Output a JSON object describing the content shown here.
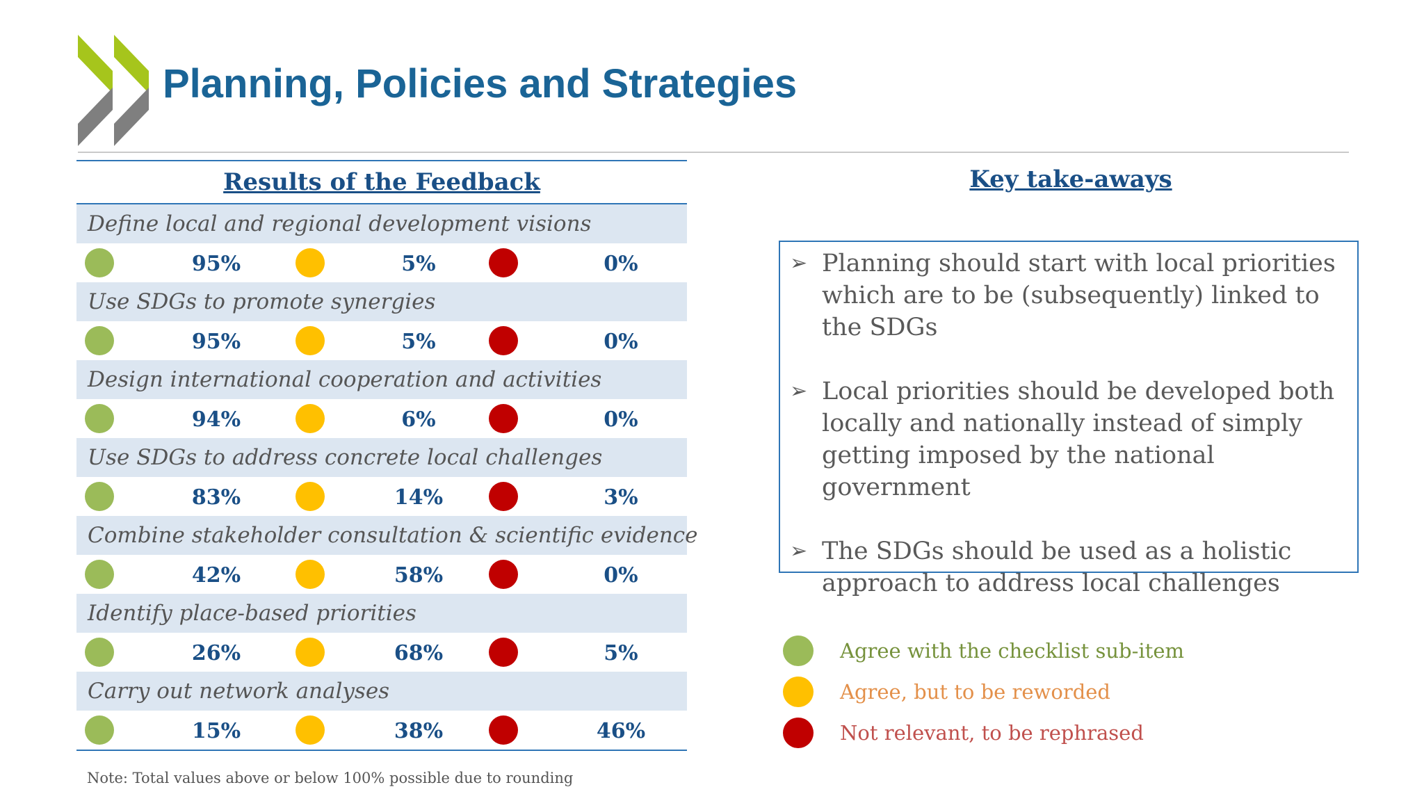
{
  "title": "Planning, Policies and Strategies",
  "colors": {
    "title": "#1a6496",
    "agree": "#9bbb59",
    "reword": "#ffc000",
    "not_relevant": "#c00000",
    "accent": "#2e75b6"
  },
  "results": {
    "heading": "Results of the Feedback",
    "items": [
      {
        "label": "Define local and regional development visions",
        "agree": "95%",
        "reword": "5%",
        "not_relevant": "0%"
      },
      {
        "label": "Use SDGs to promote synergies",
        "agree": "95%",
        "reword": "5%",
        "not_relevant": "0%"
      },
      {
        "label": "Design international cooperation and activities",
        "agree": "94%",
        "reword": "6%",
        "not_relevant": "0%"
      },
      {
        "label": "Use SDGs to address concrete local challenges",
        "agree": "83%",
        "reword": "14%",
        "not_relevant": "3%"
      },
      {
        "label": "Combine stakeholder consultation & scientific evidence",
        "agree": "42%",
        "reword": "58%",
        "not_relevant": "0%"
      },
      {
        "label": "Identify place-based priorities",
        "agree": "26%",
        "reword": "68%",
        "not_relevant": "5%"
      },
      {
        "label": "Carry out network analyses",
        "agree": "15%",
        "reword": "38%",
        "not_relevant": "46%"
      }
    ],
    "note": "Note: Total values above or below 100% possible due to rounding"
  },
  "key_takeaways": {
    "heading": "Key take-aways",
    "items": [
      "Planning should start with local priorities which are to be (subsequently) linked to the SDGs",
      "Local priorities should be developed both locally and nationally instead of simply getting imposed by the national government",
      "The SDGs should be used as a holistic approach to address local challenges"
    ]
  },
  "legend": [
    {
      "label": "Agree with the checklist sub-item",
      "dot_color": "#9bbb59",
      "text_color": "#76923c"
    },
    {
      "label": "Agree, but to be reworded",
      "dot_color": "#ffc000",
      "text_color": "#e3904a"
    },
    {
      "label": "Not relevant, to be rephrased",
      "dot_color": "#c00000",
      "text_color": "#c0504d"
    }
  ]
}
